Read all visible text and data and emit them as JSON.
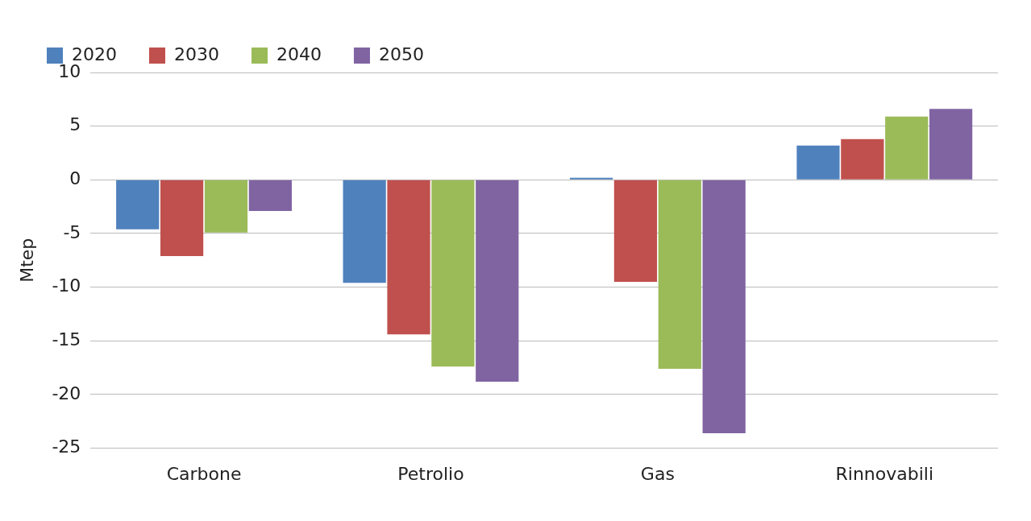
{
  "chart_data": {
    "type": "bar",
    "ylabel": "Mtep",
    "categories": [
      "Carbone",
      "Petrolio",
      "Gas",
      "Rinnovabili"
    ],
    "series": [
      {
        "name": "2020",
        "color": "#4f81bd",
        "values": [
          -4.6,
          -9.6,
          0.2,
          3.2
        ]
      },
      {
        "name": "2030",
        "color": "#c0504d",
        "values": [
          -7.1,
          -14.4,
          -9.5,
          3.8
        ]
      },
      {
        "name": "2040",
        "color": "#9bbb59",
        "values": [
          -4.9,
          -17.4,
          -17.6,
          5.9
        ]
      },
      {
        "name": "2050",
        "color": "#8064a2",
        "values": [
          -2.9,
          -18.8,
          -23.6,
          6.6
        ]
      }
    ],
    "ylim": [
      -25,
      10
    ],
    "yticks": [
      -25,
      -20,
      -15,
      -10,
      -5,
      0,
      5,
      10
    ],
    "grid": "y",
    "legend": "top left"
  }
}
